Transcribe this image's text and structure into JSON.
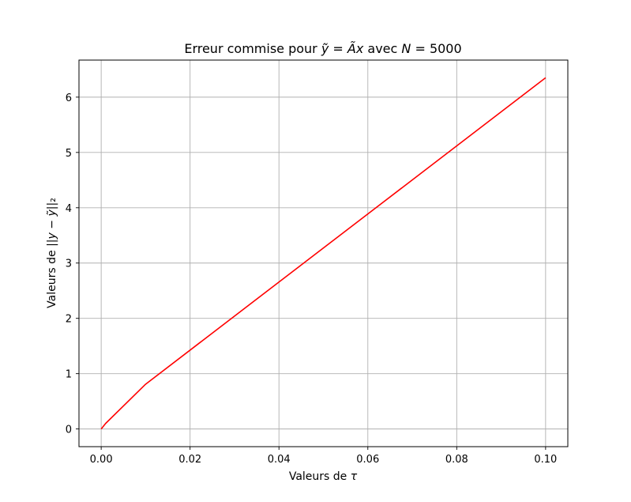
{
  "chart_data": {
    "type": "line",
    "title": "Erreur commise pour ỹ = Ãx avec N = 5000",
    "xlabel": "Valeurs de τ",
    "ylabel": "Valeurs de ||y − ỹ||₂",
    "xlim": [
      -0.005,
      0.105
    ],
    "ylim": [
      -0.32,
      6.67
    ],
    "grid": true,
    "x_ticks": [
      0.0,
      0.02,
      0.04,
      0.06,
      0.08,
      0.1
    ],
    "x_tick_labels": [
      "0.00",
      "0.02",
      "0.04",
      "0.06",
      "0.08",
      "0.10"
    ],
    "y_ticks": [
      0,
      1,
      2,
      3,
      4,
      5,
      6
    ],
    "y_tick_labels": [
      "0",
      "1",
      "2",
      "3",
      "4",
      "5",
      "6"
    ],
    "series": [
      {
        "color": "#ff0000",
        "x": [
          0.0,
          0.001,
          0.01,
          0.1
        ],
        "y": [
          0.0,
          0.1,
          0.81,
          6.35
        ]
      }
    ]
  }
}
